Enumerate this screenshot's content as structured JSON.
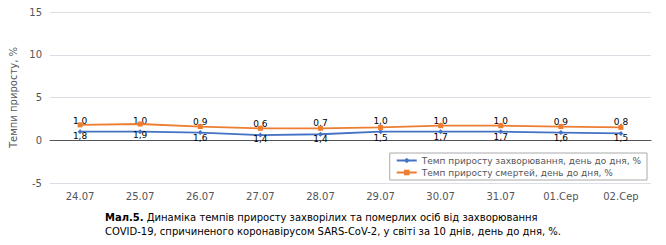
{
  "chart_data": {
    "type": "line",
    "categories": [
      "24.07",
      "25.07",
      "26.07",
      "27.07",
      "28.07",
      "29.07",
      "30.07",
      "31.07",
      "01.Сер",
      "02.Сер"
    ],
    "series": [
      {
        "name": "Темп приросту захворювання, день до дня, %",
        "color": "#4472c4",
        "marker": "diamond",
        "values": [
          1.0,
          1.0,
          0.9,
          0.6,
          0.7,
          1.0,
          1.0,
          1.0,
          0.9,
          0.8
        ],
        "value_labels": [
          "1,0",
          "1,0",
          "0,9",
          "0,6",
          "0,7",
          "1,0",
          "1,0",
          "1,0",
          "0,9",
          "0,8"
        ]
      },
      {
        "name": "Темп приросту смертей, день до дня, %",
        "color": "#ed7d31",
        "marker": "square",
        "values": [
          1.8,
          1.9,
          1.6,
          1.4,
          1.4,
          1.5,
          1.7,
          1.7,
          1.6,
          1.5
        ],
        "value_labels": [
          "1,8",
          "1,9",
          "1,6",
          "1,4",
          "1,4",
          "1,5",
          "1,7",
          "1,7",
          "1,6",
          "1,5"
        ]
      }
    ],
    "ylabel": "Темпи приросту, %",
    "ylim": [
      -5,
      15
    ],
    "yticks": [
      -5,
      0,
      5,
      10,
      15
    ],
    "grid": true,
    "legend": "lower right",
    "data_labels": true,
    "caption_bold": "Мал.5.",
    "caption": [
      "Динаміка темпів приросту захворілих та померлих осіб від захворювання",
      "COVID-19, спричиненого коронавірусом SARS-CoV-2, у світі за 10 днів, день до дня, %."
    ]
  }
}
